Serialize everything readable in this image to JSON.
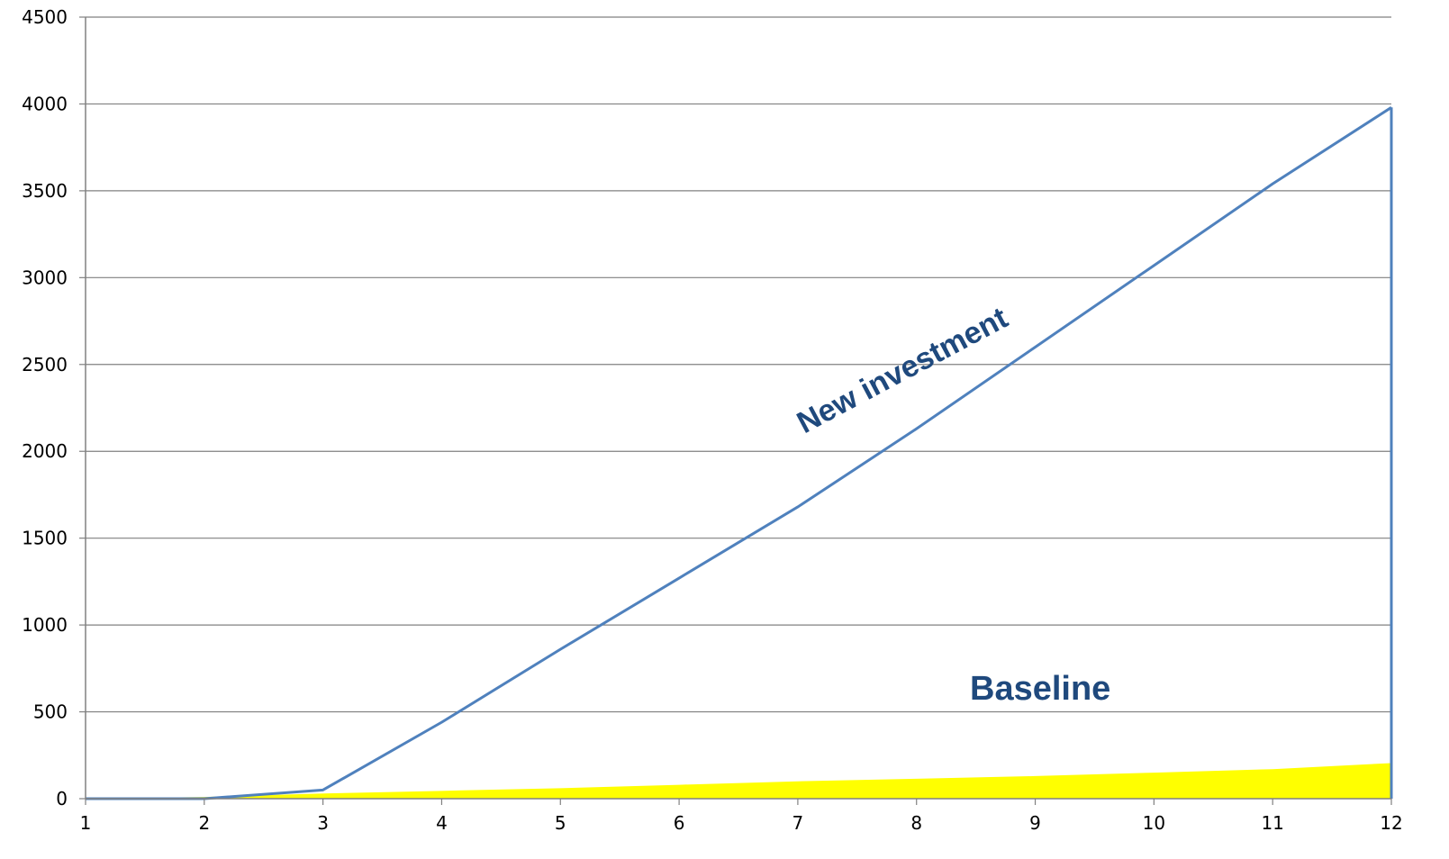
{
  "chart_data": {
    "type": "area",
    "x": [
      1,
      2,
      3,
      4,
      5,
      6,
      7,
      8,
      9,
      10,
      11,
      12
    ],
    "xlim": [
      1,
      12
    ],
    "ylim": [
      0,
      4500
    ],
    "y_ticks": [
      0,
      500,
      1000,
      1500,
      2000,
      2500,
      3000,
      3500,
      4000,
      4500
    ],
    "x_ticks": [
      1,
      2,
      3,
      4,
      5,
      6,
      7,
      8,
      9,
      10,
      11,
      12
    ],
    "grid": true,
    "legend": "none",
    "series": [
      {
        "name": "Baseline",
        "type": "area",
        "color": "#ffff00",
        "values": [
          0,
          10,
          30,
          45,
          60,
          80,
          100,
          115,
          130,
          150,
          170,
          205
        ]
      },
      {
        "name": "New investment",
        "type": "line",
        "color": "#4f81bd",
        "values": [
          0,
          0,
          50,
          440,
          860,
          1270,
          1680,
          2130,
          2600,
          3070,
          3540,
          3980
        ]
      }
    ],
    "annotations": [
      {
        "text": "New investment",
        "series": "New investment",
        "color": "#1f497d"
      },
      {
        "text": "Baseline",
        "series": "Baseline",
        "color": "#1f497d"
      }
    ],
    "gridline_color": "#808080",
    "axis_color": "#808080"
  }
}
